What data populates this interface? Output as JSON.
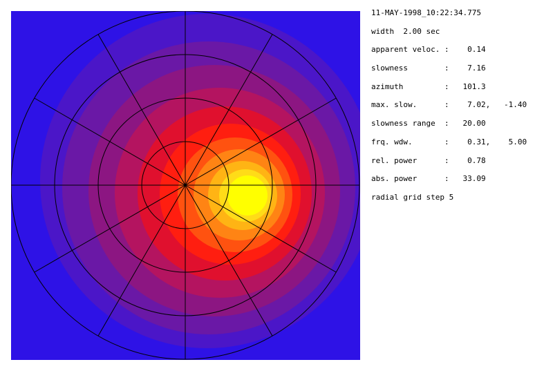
{
  "header": {
    "timestamp": "11-MAY-1998_10:22:34.775"
  },
  "parameters": [
    "width  2.00 sec",
    "apparent veloc. :    0.14",
    "slowness        :    7.16",
    "azimuth         :   101.3",
    "max. slow.      :    7.02,   -1.40",
    "slowness range  :   20.00",
    "frq. wdw.       :    0.31,    5.00",
    "rel. power      :    0.78",
    "abs. power      :   33.09",
    "radial grid step 5"
  ]
}
